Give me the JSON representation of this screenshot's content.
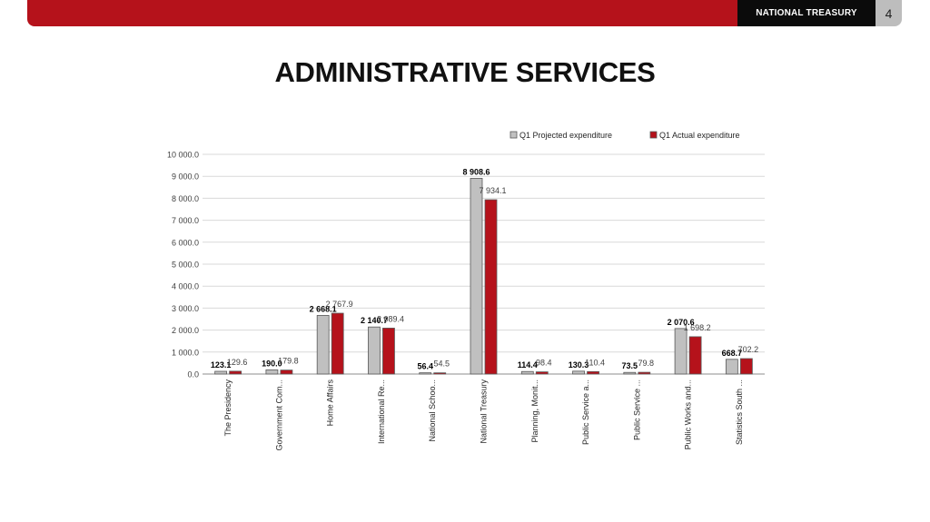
{
  "header": {
    "brand": "NATIONAL TREASURY",
    "page_number": "4",
    "accent_color": "#b5121b",
    "brand_bg": "#0b0b0b"
  },
  "title": "ADMINISTRATIVE SERVICES",
  "chart_data": {
    "type": "bar",
    "title": "",
    "xlabel": "",
    "ylabel": "",
    "ylim": [
      0,
      10000
    ],
    "yticks": [
      "0.0",
      "1 000.0",
      "2 000.0",
      "3 000.0",
      "4 000.0",
      "5 000.0",
      "6 000.0",
      "7 000.0",
      "8 000.0",
      "9 000.0",
      "10 000.0"
    ],
    "grid": true,
    "legend_position": "top-right",
    "categories": [
      "The Presidency",
      "Government Com...",
      "Home Affairs",
      "International Re...",
      "National Schoo...",
      "National Treasury",
      "Planning, Monit...",
      "Public Service a...",
      "Public Service ...",
      "Public Works and...",
      "Statistics South ..."
    ],
    "series": [
      {
        "name": "Q1 Projected expenditure",
        "color": "#c0c0c0",
        "values": [
          123.1,
          190.0,
          2668.1,
          2140.7,
          56.4,
          8908.6,
          114.4,
          130.3,
          73.5,
          2070.6,
          668.7
        ],
        "labels": [
          "123.1",
          "190.0",
          "2 668.1",
          "2 140.7",
          "56.4",
          "8 908.6",
          "114.4",
          "130.3",
          "73.5",
          "2 070.6",
          "668.7"
        ]
      },
      {
        "name": "Q1 Actual expenditure",
        "color": "#b5121b",
        "values": [
          129.6,
          179.8,
          2767.9,
          2089.4,
          54.5,
          7934.1,
          98.4,
          110.4,
          79.8,
          1698.2,
          702.2
        ],
        "labels": [
          "129.6",
          "179.8",
          "2 767.9",
          "2 089.4",
          "54.5",
          "7 934.1",
          "98.4",
          "110.4",
          "79.8",
          "1 698.2",
          "702.2"
        ]
      }
    ]
  }
}
